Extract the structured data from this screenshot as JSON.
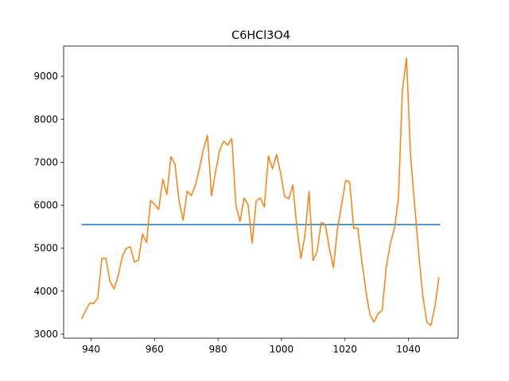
{
  "chart_data": {
    "type": "line",
    "title": "C6HCl3O4",
    "xlim": [
      931.35,
      1055.65
    ],
    "ylim": [
      2907,
      9704
    ],
    "xticks": [
      940,
      960,
      980,
      1000,
      1020,
      1040
    ],
    "yticks": [
      3000,
      4000,
      5000,
      6000,
      7000,
      8000,
      9000
    ],
    "grid": false,
    "series": [
      {
        "color": "#1f77b4",
        "x": [
          937,
          1050
        ],
        "values": [
          5550,
          5550
        ]
      },
      {
        "color": "#ff7f0e",
        "x": [
          937,
          938.28,
          939.56,
          940.84,
          942.12,
          943.4,
          944.68,
          945.96,
          947.24,
          948.52,
          949.8,
          951.08,
          952.36,
          953.64,
          954.92,
          956.2,
          957.48,
          958.76,
          960.04,
          961.32,
          962.6,
          963.88,
          965.16,
          966.44,
          967.72,
          969,
          970.28,
          971.56,
          972.84,
          974.12,
          975.4,
          976.68,
          977.96,
          979.24,
          980.52,
          981.8,
          983.08,
          984.36,
          985.64,
          986.92,
          988.2,
          989.48,
          990.76,
          992.04,
          993.32,
          994.6,
          995.88,
          997.16,
          998.44,
          999.72,
          1001,
          1002.28,
          1003.56,
          1004.84,
          1006.12,
          1007.4,
          1008.68,
          1009.96,
          1011.24,
          1012.52,
          1013.8,
          1015.08,
          1016.36,
          1017.64,
          1018.92,
          1020.2,
          1021.48,
          1022.76,
          1024.04,
          1025.32,
          1026.6,
          1027.88,
          1029.16,
          1030.44,
          1031.72,
          1033,
          1034.28,
          1035.56,
          1036.84,
          1038.12,
          1039.4,
          1040.68,
          1041.96,
          1043.24,
          1044.52,
          1045.8,
          1047.08,
          1048.36,
          1049.64
        ],
        "values": [
          3350,
          3550,
          3720,
          3710,
          3850,
          4760,
          4760,
          4230,
          4050,
          4350,
          4800,
          5000,
          5030,
          4680,
          4720,
          5330,
          5130,
          6110,
          6020,
          5900,
          6600,
          6250,
          7130,
          6960,
          6100,
          5650,
          6330,
          6220,
          6450,
          6850,
          7300,
          7630,
          6220,
          6780,
          7280,
          7490,
          7400,
          7550,
          6000,
          5620,
          6170,
          6010,
          5120,
          6100,
          6170,
          5960,
          7150,
          6850,
          7180,
          6750,
          6200,
          6150,
          6470,
          5500,
          4760,
          5300,
          6320,
          4710,
          4930,
          5600,
          5550,
          5000,
          4550,
          5450,
          6000,
          6580,
          6540,
          5460,
          5470,
          4700,
          4000,
          3450,
          3280,
          3480,
          3550,
          4550,
          5100,
          5450,
          6150,
          8700,
          9420,
          7150,
          6000,
          4870,
          3900,
          3280,
          3200,
          3650,
          4330
        ]
      }
    ]
  }
}
